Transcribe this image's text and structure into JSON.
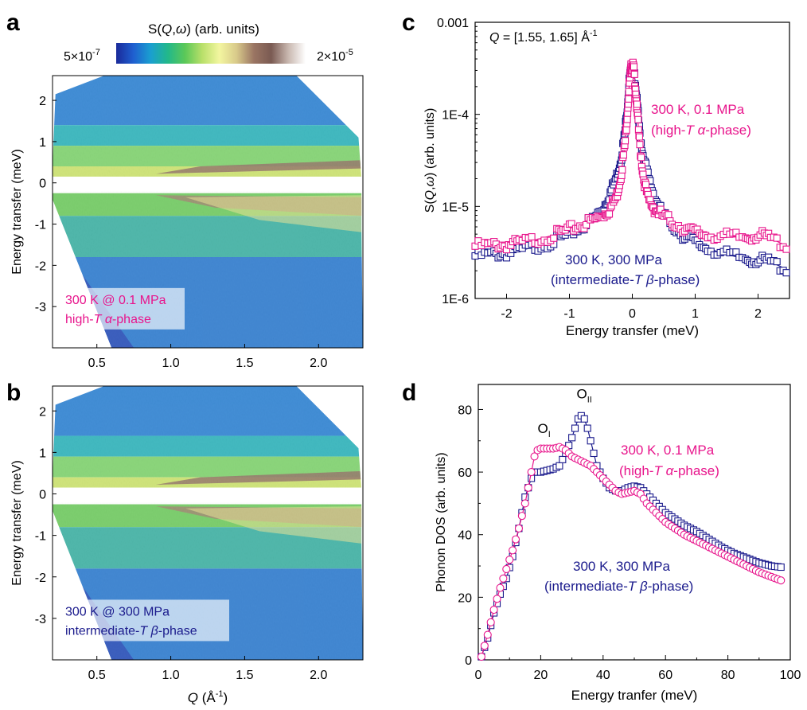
{
  "figure": {
    "colorbar": {
      "title_html_parts": [
        "S(",
        "Q",
        ",",
        "ω",
        ") (arb. units)"
      ],
      "min_label_base": "5×10",
      "min_label_exp": "-7",
      "max_label_base": "2×10",
      "max_label_exp": "-5",
      "colors": [
        "#1a2a9a",
        "#1f5fd0",
        "#1a9fd0",
        "#22b88a",
        "#5cc858",
        "#b9e06a",
        "#f3f6a0",
        "#d8c98a",
        "#9a7563",
        "#7a5a52",
        "#c9b8b0",
        "#ffffff"
      ]
    },
    "colors": {
      "pink": "#e8158c",
      "navy": "#1a1a8c",
      "black": "#000000"
    }
  },
  "chart_data": [
    {
      "panel": "a",
      "type": "heatmap",
      "title": "",
      "xlabel": "",
      "ylabel": "Energy transfer (meV)",
      "xlim": [
        0.2,
        2.3
      ],
      "ylim": [
        -4.0,
        2.6
      ],
      "xticks": [
        "0.5",
        "1.0",
        "1.5",
        "2.0"
      ],
      "yticks": [
        "2",
        "1",
        "0",
        "-1",
        "-2",
        "-3"
      ],
      "annotation_line1": "300 K @ 0.1 MPa",
      "annotation_line2_prefix": "high-",
      "annotation_line2_T": "T",
      "annotation_line2_greek": "α",
      "annotation_line2_suffix": "-phase",
      "annotation_color": "#e8158c"
    },
    {
      "panel": "b",
      "type": "heatmap",
      "title": "",
      "xlabel": "Q (Å-1)",
      "xlabel_parts": [
        "Q",
        " (Å",
        "-1",
        ")"
      ],
      "ylabel": "Energy transfer (meV)",
      "xlim": [
        0.2,
        2.3
      ],
      "ylim": [
        -4.0,
        2.6
      ],
      "xticks": [
        "0.5",
        "1.0",
        "1.5",
        "2.0"
      ],
      "yticks": [
        "2",
        "1",
        "0",
        "-1",
        "-2",
        "-3"
      ],
      "annotation_line1": "300 K @ 300 MPa",
      "annotation_line2_prefix": "intermediate-",
      "annotation_line2_T": "T",
      "annotation_line2_greek": "β",
      "annotation_line2_suffix": "-phase",
      "annotation_color": "#1a1a8c"
    },
    {
      "panel": "c",
      "type": "scatter",
      "title": "Q = [1.55, 1.65] Å-1",
      "title_parts": [
        "Q",
        " = [1.55, 1.65] Å",
        "-1"
      ],
      "xlabel": "Energy transfer (meV)",
      "ylabel": "S(Q,ω) (arb. units)",
      "ylabel_parts": [
        "S(",
        "Q",
        ",",
        "ω",
        ") (arb. units)"
      ],
      "yscale": "log",
      "xlim": [
        -2.5,
        2.5
      ],
      "ylim": [
        1e-06,
        0.001
      ],
      "xticks": [
        "-2",
        "-1",
        "0",
        "1",
        "2"
      ],
      "xtick_values": [
        -2,
        -1,
        0,
        1,
        2
      ],
      "yticks": [
        "0.001",
        "1E-4",
        "1E-5",
        "1E-6"
      ],
      "ytick_values": [
        0.001,
        0.0001,
        1e-05,
        1e-06
      ],
      "series": [
        {
          "name": "300 K, 0.1 MPa (high-T α-phase)",
          "color": "#e8158c",
          "x": [
            -2.5,
            -2.2,
            -2.0,
            -1.8,
            -1.5,
            -1.2,
            -1.0,
            -0.8,
            -0.6,
            -0.45,
            -0.35,
            -0.25,
            -0.18,
            -0.12,
            -0.08,
            -0.05,
            -0.02,
            0.0,
            0.02,
            0.05,
            0.08,
            0.12,
            0.18,
            0.25,
            0.35,
            0.45,
            0.6,
            0.8,
            1.0,
            1.2,
            1.5,
            1.8,
            2.0,
            2.2,
            2.5
          ],
          "y": [
            3.7e-06,
            3.8e-06,
            3.8e-06,
            4e-06,
            4.4e-06,
            5e-06,
            5.6e-06,
            6.3e-06,
            7.2e-06,
            8.2e-06,
            9.5e-06,
            1.3e-05,
            2.2e-05,
            4.5e-05,
            0.0001,
            0.0002,
            0.00031,
            0.00034,
            0.00031,
            0.0002,
            0.0001,
            4.5e-05,
            2e-05,
            1.2e-05,
            9.5e-06,
            8.2e-06,
            7e-06,
            5.9e-06,
            5.2e-06,
            4.9e-06,
            4.7e-06,
            4.6e-06,
            4.9e-06,
            4.5e-06,
            3.6e-06
          ]
        },
        {
          "name": "300 K, 300 MPa (intermediate-T β-phase)",
          "color": "#1a1a8c",
          "x": [
            -2.5,
            -2.2,
            -2.0,
            -1.8,
            -1.5,
            -1.2,
            -1.0,
            -0.8,
            -0.6,
            -0.45,
            -0.35,
            -0.25,
            -0.18,
            -0.12,
            -0.08,
            -0.05,
            -0.02,
            0.0,
            0.02,
            0.05,
            0.08,
            0.12,
            0.18,
            0.25,
            0.35,
            0.45,
            0.6,
            0.8,
            1.0,
            1.2,
            1.5,
            1.8,
            2.0,
            2.2,
            2.5
          ],
          "y": [
            2.9e-06,
            3e-06,
            3.1e-06,
            3.3e-06,
            3.7e-06,
            4.3e-06,
            5e-06,
            6e-06,
            7.5e-06,
            1e-05,
            1.4e-05,
            2.1e-05,
            3.3e-05,
            6e-05,
            0.00012,
            0.00022,
            0.0003,
            0.00032,
            0.0003,
            0.00022,
            0.00012,
            6e-05,
            3.3e-05,
            2.1e-05,
            1.3e-05,
            9e-06,
            6.6e-06,
            4.9e-06,
            4e-06,
            3.5e-06,
            3e-06,
            2.7e-06,
            2.6e-06,
            2.5e-06,
            2e-06
          ]
        }
      ],
      "label_pink_line1": "300 K,  0.1 MPa",
      "label_pink_line2": [
        "(high-",
        "T",
        " α",
        "-phase)"
      ],
      "label_navy_line1": "300 K, 300 MPa",
      "label_navy_line2": [
        "(intermediate-",
        "T",
        " β",
        "-phase)"
      ]
    },
    {
      "panel": "d",
      "type": "scatter",
      "title": "",
      "xlabel": "Energy tranfer (meV)",
      "ylabel": "Phonon DOS (arb. units)",
      "xlim": [
        0,
        100
      ],
      "ylim": [
        0,
        88
      ],
      "xticks": [
        "0",
        "20",
        "40",
        "60",
        "80",
        "100"
      ],
      "xtick_values": [
        0,
        20,
        40,
        60,
        80,
        100
      ],
      "yticks": [
        "0",
        "20",
        "40",
        "60",
        "80"
      ],
      "ytick_values": [
        0,
        20,
        40,
        60,
        80
      ],
      "series": [
        {
          "name": "300 K, 0.1 MPa (high-T α-phase)",
          "color": "#e8158c",
          "marker": "circle",
          "x": [
            1,
            3,
            5,
            7,
            9,
            11,
            13,
            15,
            17,
            18,
            19,
            20,
            22,
            24,
            26,
            28,
            30,
            32,
            34,
            36,
            38,
            40,
            42,
            44,
            46,
            48,
            50,
            52,
            54,
            56,
            58,
            60,
            63,
            66,
            70,
            74,
            78,
            82,
            86,
            90,
            94,
            98
          ],
          "y": [
            1,
            8,
            16,
            23,
            29,
            35,
            42,
            50,
            60,
            65,
            67,
            67.5,
            67.5,
            67.5,
            68,
            67,
            65,
            64,
            63,
            62,
            60,
            58,
            56,
            54,
            53,
            53.5,
            54,
            53,
            50,
            48,
            46,
            44,
            42,
            40,
            38,
            36,
            34,
            32,
            30,
            28,
            26.5,
            25
          ]
        },
        {
          "name": "300 K, 300 MPa (intermediate-T β-phase)",
          "color": "#1a1a8c",
          "marker": "square",
          "x": [
            1,
            3,
            5,
            7,
            9,
            11,
            13,
            15,
            17,
            18,
            20,
            22,
            24,
            26,
            28,
            30,
            31,
            32,
            33,
            34,
            35,
            36,
            38,
            40,
            42,
            44,
            46,
            48,
            50,
            52,
            54,
            56,
            58,
            60,
            63,
            66,
            70,
            74,
            78,
            82,
            86,
            90,
            94,
            98
          ],
          "y": [
            1,
            7,
            15,
            21,
            26,
            33,
            42,
            52,
            58,
            60,
            60,
            60.5,
            61,
            62,
            66,
            71,
            74,
            77,
            78,
            77,
            74,
            70,
            62,
            58,
            55,
            54,
            54,
            55,
            55.5,
            55,
            53,
            51,
            49,
            47,
            45,
            43,
            41,
            38.5,
            36,
            34,
            32.5,
            31,
            30,
            29.5
          ]
        }
      ],
      "peak_labels": [
        {
          "base": "O",
          "sub": "I"
        },
        {
          "base": "O",
          "sub": "II"
        }
      ],
      "label_pink_line1": "300 K, 0.1 MPa",
      "label_pink_line2": [
        "(high-",
        "T",
        " α",
        "-phase)"
      ],
      "label_navy_line1": "300 K, 300 MPa",
      "label_navy_line2": [
        "(intermediate-",
        "T",
        " β",
        "-phase)"
      ]
    }
  ],
  "panel_letters": [
    "a",
    "b",
    "c",
    "d"
  ]
}
